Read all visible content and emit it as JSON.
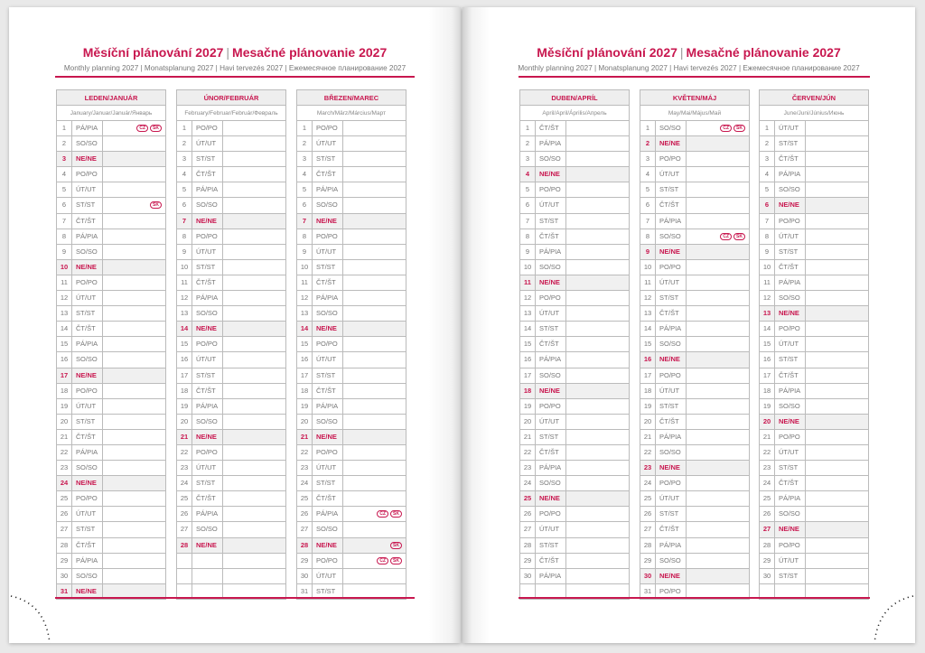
{
  "header": {
    "title_cz": "Měsíční plánování 2027",
    "title_sk": "Mesačné plánovanie 2027",
    "separator": "|",
    "subtitle": "Monthly planning 2027 | Monatsplanung 2027 | Havi tervezés 2027 | Ежемесячное планирование 2027"
  },
  "colors": {
    "accent": "#c8174f",
    "header_bg": "#eeeeee",
    "sunday_bg": "#f0f0f0",
    "border": "#bbbbbb"
  },
  "months": [
    {
      "name": "LEDEN/JANUÁR",
      "sub": "January/Januar/Január/Январь",
      "days": [
        "PÁ/PIA",
        "SO/SO",
        "NE/NE",
        "PO/PO",
        "ÚT/UT",
        "ST/ST",
        "ČT/ŠT",
        "PÁ/PIA",
        "SO/SO",
        "NE/NE",
        "PO/PO",
        "ÚT/UT",
        "ST/ST",
        "ČT/ŠT",
        "PÁ/PIA",
        "SO/SO",
        "NE/NE",
        "PO/PO",
        "ÚT/UT",
        "ST/ST",
        "ČT/ŠT",
        "PÁ/PIA",
        "SO/SO",
        "NE/NE",
        "PO/PO",
        "ÚT/UT",
        "ST/ST",
        "ČT/ŠT",
        "PÁ/PIA",
        "SO/SO",
        "NE/NE"
      ],
      "holidays": {
        "1": [
          "CZ",
          "SK"
        ],
        "6": [
          "SK"
        ]
      }
    },
    {
      "name": "ÚNOR/FEBRUÁR",
      "sub": "February/Februar/Február/Февраль",
      "days": [
        "PO/PO",
        "ÚT/UT",
        "ST/ST",
        "ČT/ŠT",
        "PÁ/PIA",
        "SO/SO",
        "NE/NE",
        "PO/PO",
        "ÚT/UT",
        "ST/ST",
        "ČT/ŠT",
        "PÁ/PIA",
        "SO/SO",
        "NE/NE",
        "PO/PO",
        "ÚT/UT",
        "ST/ST",
        "ČT/ŠT",
        "PÁ/PIA",
        "SO/SO",
        "NE/NE",
        "PO/PO",
        "ÚT/UT",
        "ST/ST",
        "ČT/ŠT",
        "PÁ/PIA",
        "SO/SO",
        "NE/NE"
      ],
      "holidays": {}
    },
    {
      "name": "BŘEZEN/MAREC",
      "sub": "March/März/Március/Март",
      "days": [
        "PO/PO",
        "ÚT/UT",
        "ST/ST",
        "ČT/ŠT",
        "PÁ/PIA",
        "SO/SO",
        "NE/NE",
        "PO/PO",
        "ÚT/UT",
        "ST/ST",
        "ČT/ŠT",
        "PÁ/PIA",
        "SO/SO",
        "NE/NE",
        "PO/PO",
        "ÚT/UT",
        "ST/ST",
        "ČT/ŠT",
        "PÁ/PIA",
        "SO/SO",
        "NE/NE",
        "PO/PO",
        "ÚT/UT",
        "ST/ST",
        "ČT/ŠT",
        "PÁ/PIA",
        "SO/SO",
        "NE/NE",
        "PO/PO",
        "ÚT/UT",
        "ST/ST"
      ],
      "holidays": {
        "26": [
          "CZ",
          "SK"
        ],
        "28": [
          "SK"
        ],
        "29": [
          "CZ",
          "SK"
        ]
      }
    },
    {
      "name": "DUBEN/APRÍL",
      "sub": "April/April/Április/Апрель",
      "days": [
        "ČT/ŠT",
        "PÁ/PIA",
        "SO/SO",
        "NE/NE",
        "PO/PO",
        "ÚT/UT",
        "ST/ST",
        "ČT/ŠT",
        "PÁ/PIA",
        "SO/SO",
        "NE/NE",
        "PO/PO",
        "ÚT/UT",
        "ST/ST",
        "ČT/ŠT",
        "PÁ/PIA",
        "SO/SO",
        "NE/NE",
        "PO/PO",
        "ÚT/UT",
        "ST/ST",
        "ČT/ŠT",
        "PÁ/PIA",
        "SO/SO",
        "NE/NE",
        "PO/PO",
        "ÚT/UT",
        "ST/ST",
        "ČT/ŠT",
        "PÁ/PIA"
      ],
      "holidays": {}
    },
    {
      "name": "KVĚTEN/MÁJ",
      "sub": "May/Mai/Május/Май",
      "days": [
        "SO/SO",
        "NE/NE",
        "PO/PO",
        "ÚT/UT",
        "ST/ST",
        "ČT/ŠT",
        "PÁ/PIA",
        "SO/SO",
        "NE/NE",
        "PO/PO",
        "ÚT/UT",
        "ST/ST",
        "ČT/ŠT",
        "PÁ/PIA",
        "SO/SO",
        "NE/NE",
        "PO/PO",
        "ÚT/UT",
        "ST/ST",
        "ČT/ŠT",
        "PÁ/PIA",
        "SO/SO",
        "NE/NE",
        "PO/PO",
        "ÚT/UT",
        "ST/ST",
        "ČT/ŠT",
        "PÁ/PIA",
        "SO/SO",
        "NE/NE",
        "PO/PO"
      ],
      "holidays": {
        "1": [
          "CZ",
          "SK"
        ],
        "8": [
          "CZ",
          "SK"
        ]
      }
    },
    {
      "name": "ČERVEN/JÚN",
      "sub": "June/Juni/Június/Июнь",
      "days": [
        "ÚT/UT",
        "ST/ST",
        "ČT/ŠT",
        "PÁ/PIA",
        "SO/SO",
        "NE/NE",
        "PO/PO",
        "ÚT/UT",
        "ST/ST",
        "ČT/ŠT",
        "PÁ/PIA",
        "SO/SO",
        "NE/NE",
        "PO/PO",
        "ÚT/UT",
        "ST/ST",
        "ČT/ŠT",
        "PÁ/PIA",
        "SO/SO",
        "NE/NE",
        "PO/PO",
        "ÚT/UT",
        "ST/ST",
        "ČT/ŠT",
        "PÁ/PIA",
        "SO/SO",
        "NE/NE",
        "PO/PO",
        "ÚT/UT",
        "ST/ST"
      ],
      "holidays": {}
    }
  ]
}
